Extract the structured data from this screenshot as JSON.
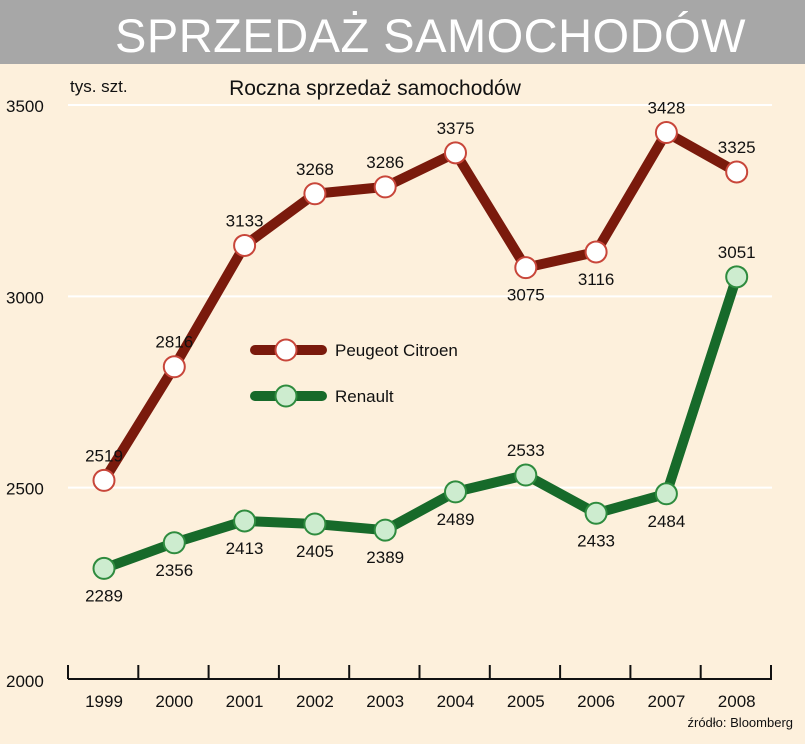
{
  "header": {
    "title": "SPRZEDAŻ SAMOCHODÓW"
  },
  "chart_data": {
    "type": "line",
    "title": "Roczna sprzedaż samochodów",
    "ylabel": "tys. szt.",
    "xlabel": "",
    "source": "źródło: Bloomberg",
    "categories": [
      "1999",
      "2000",
      "2001",
      "2002",
      "2003",
      "2004",
      "2005",
      "2006",
      "2007",
      "2008"
    ],
    "ylim": [
      2000,
      3500
    ],
    "yticks": [
      2000,
      2500,
      3000,
      3500
    ],
    "grid": "horizontal",
    "legend": "center-left",
    "series": [
      {
        "name": "Peugeot Citroen",
        "color": "#7a1a0c",
        "marker_fill": "#ffffff",
        "marker_stroke": "#c8463a",
        "values": [
          2519,
          2816,
          3133,
          3268,
          3286,
          3375,
          3075,
          3116,
          3428,
          3325
        ],
        "label_pos": [
          "above",
          "above",
          "above",
          "above",
          "above",
          "above",
          "below",
          "below",
          "above",
          "above"
        ]
      },
      {
        "name": "Renault",
        "color": "#176a2a",
        "marker_fill": "#cdeccf",
        "marker_stroke": "#2e8b3e",
        "values": [
          2289,
          2356,
          2413,
          2405,
          2389,
          2489,
          2533,
          2433,
          2484,
          3051
        ],
        "label_pos": [
          "below",
          "below",
          "below",
          "below",
          "below",
          "below",
          "above",
          "below",
          "below",
          "above"
        ]
      }
    ]
  }
}
